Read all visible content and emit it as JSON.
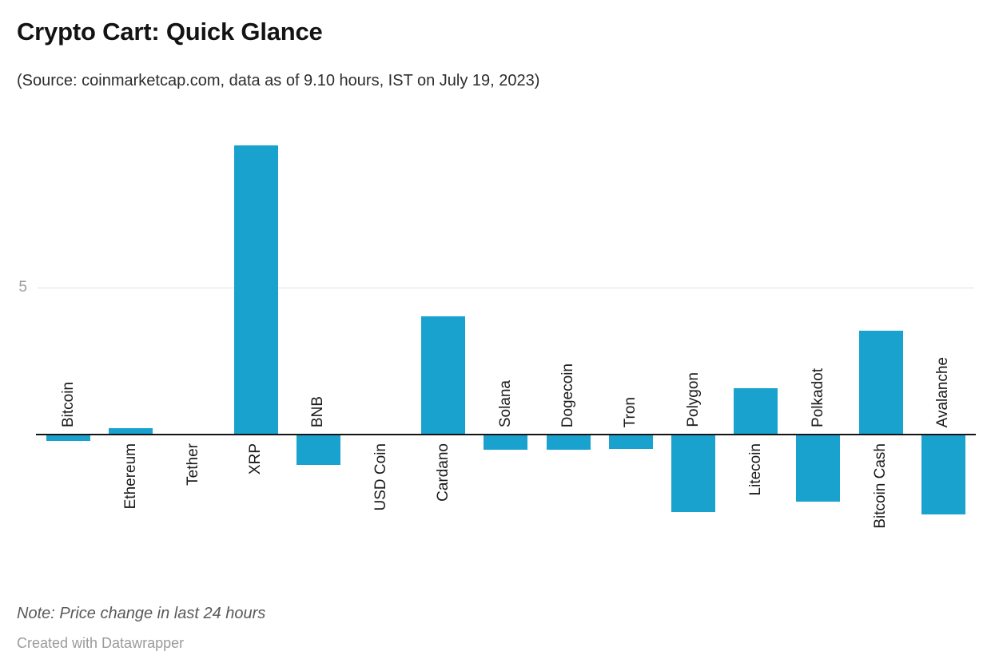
{
  "header": {
    "title": "Crypto Cart: Quick Glance",
    "subtitle": "(Source: coinmarketcap.com, data as of 9.10 hours, IST on July 19, 2023)"
  },
  "chart_data": {
    "type": "bar",
    "title": "Crypto Cart: Quick Glance",
    "subtitle": "(Source: coinmarketcap.com, data as of 9.10 hours, IST on July 19, 2023)",
    "categories": [
      "Bitcoin",
      "Ethereum",
      "Tether",
      "XRP",
      "BNB",
      "USD Coin",
      "Cardano",
      "Solana",
      "Dogecoin",
      "Tron",
      "Polygon",
      "Litecoin",
      "Polkadot",
      "Bitcoin Cash",
      "Avalanche"
    ],
    "values": [
      -0.2,
      0.2,
      0,
      9.8,
      -1.0,
      0,
      4.0,
      -0.5,
      -0.5,
      -0.45,
      -2.6,
      1.55,
      -2.25,
      3.5,
      -2.7
    ],
    "xlabel": "",
    "ylabel": "",
    "unit": "% price change in last 24 hours",
    "y_axis_ticks": [
      "5"
    ],
    "ylim": [
      -3,
      10
    ],
    "baseline": 0,
    "grid": "single horizontal gridline at y=5",
    "legend_position": "none",
    "bar_color": "#1aa2cf",
    "label_placement": "rotated 90deg, opposite side of bar relative to zero baseline"
  },
  "footer": {
    "note": "Note: Price change in last 24 hours",
    "credit": "Created with Datawrapper"
  },
  "colors": {
    "bar": "#1aa2cf",
    "baseline": "#141414",
    "gridline": "#e2e2e2",
    "tick_label": "#9e9e9e",
    "title": "#131313",
    "note": "#595959",
    "credit": "#9b9b9b"
  }
}
